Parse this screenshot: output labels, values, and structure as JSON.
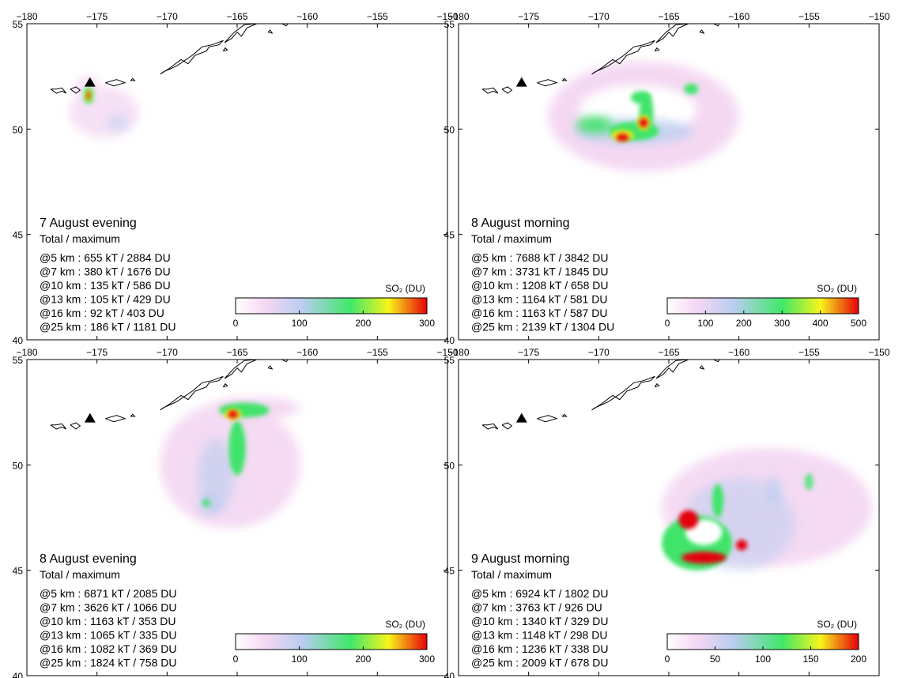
{
  "axes": {
    "xlim": [
      -180,
      -150
    ],
    "ylim": [
      40,
      55
    ],
    "xticks": [
      {
        "value": -180,
        "label": "−180"
      },
      {
        "value": -175,
        "label": "−175"
      },
      {
        "value": -170,
        "label": "−170"
      },
      {
        "value": -165,
        "label": "−165"
      },
      {
        "value": -160,
        "label": "−160"
      },
      {
        "value": -155,
        "label": "−155"
      },
      {
        "value": -150,
        "label": "−150"
      }
    ],
    "yticks": [
      40,
      45,
      50,
      55
    ]
  },
  "panels": [
    {
      "title": "7 August evening",
      "subtitle": "Total / maximum",
      "lines": [
        "@5 km : 655 kT / 2884 DU",
        "@7 km : 380 kT / 1676 DU",
        "@10 km : 135 kT / 586 DU",
        "@13 km : 105 kT / 429 DU",
        "@16 km : 92 kT / 403 DU",
        "@25 km : 186 kT / 1181 DU"
      ],
      "colorbar": {
        "label": "SO₂ (DU)",
        "lim": [
          0,
          300
        ],
        "ticks": [
          0,
          100,
          200,
          300
        ]
      }
    },
    {
      "title": "8 August morning",
      "subtitle": "Total / maximum",
      "lines": [
        "@5 km : 7688 kT / 3842 DU",
        "@7 km : 3731 kT / 1845 DU",
        "@10 km : 1208 kT / 658 DU",
        "@13 km : 1164 kT / 581 DU",
        "@16 km : 1163 kT / 587 DU",
        "@25 km : 2139 kT / 1304 DU"
      ],
      "colorbar": {
        "label": "SO₂ (DU)",
        "lim": [
          0,
          500
        ],
        "ticks": [
          0,
          100,
          200,
          300,
          400,
          500
        ]
      }
    },
    {
      "title": "8 August evening",
      "subtitle": "Total / maximum",
      "lines": [
        "@5 km : 6871 kT / 2085 DU",
        "@7 km : 3626 kT / 1066 DU",
        "@10 km : 1163 kT / 353 DU",
        "@13 km : 1065 kT / 335 DU",
        "@16 km : 1082 kT / 369 DU",
        "@25 km : 1824 kT / 758 DU"
      ],
      "colorbar": {
        "label": "SO₂ (DU)",
        "lim": [
          0,
          300
        ],
        "ticks": [
          0,
          100,
          200,
          300
        ]
      }
    },
    {
      "title": "9 August morning",
      "subtitle": "Total / maximum",
      "lines": [
        "@5 km : 6924 kT / 1802 DU",
        "@7 km : 3763 kT / 926 DU",
        "@10 km : 1340 kT / 329 DU",
        "@13 km : 1148 kT / 298 DU",
        "@16 km : 1236 kT / 338 DU",
        "@25 km : 2009 kT / 678 DU"
      ],
      "colorbar": {
        "label": "SO₂ (DU)",
        "lim": [
          0,
          200
        ],
        "ticks": [
          0,
          50,
          100,
          150,
          200
        ]
      }
    }
  ]
}
